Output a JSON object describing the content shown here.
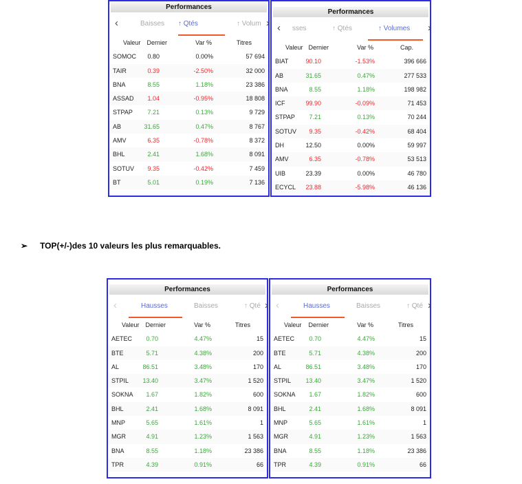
{
  "colors": {
    "border": "#2b2be8",
    "up": "#3aa83a",
    "down": "#f0282d",
    "active_tab": "#5b6ad2",
    "underline": "#ef5a2a"
  },
  "bullet": {
    "icon": "arrowhead-bullet-icon",
    "glyph": "➢",
    "text": "TOP(+/-)des 10 valeurs les plus remarquables."
  },
  "panels": [
    {
      "title": "Performances",
      "tabs": [
        {
          "label": "Baisses",
          "active": false
        },
        {
          "label": "↑ Qtés",
          "active": true
        },
        {
          "label": "↑ Volum",
          "active": false
        }
      ],
      "columns": [
        "Valeur",
        "Dernier",
        "Var %",
        "Titres"
      ],
      "rows": [
        [
          "SOMOC",
          "0.80",
          "0.00%",
          "57 694",
          "flat"
        ],
        [
          "TAIR",
          "0.39",
          "-2.50%",
          "32 000",
          "down"
        ],
        [
          "BNA",
          "8.55",
          "1.18%",
          "23 386",
          "up"
        ],
        [
          "ASSAD",
          "1.04",
          "-0.95%",
          "18 808",
          "down"
        ],
        [
          "STPAP",
          "7.21",
          "0.13%",
          "9 729",
          "up"
        ],
        [
          "AB",
          "31.65",
          "0.47%",
          "8 767",
          "up"
        ],
        [
          "AMV",
          "6.35",
          "-0.78%",
          "8 372",
          "down"
        ],
        [
          "BHL",
          "2.41",
          "1.68%",
          "8 091",
          "up"
        ],
        [
          "SOTUV",
          "9.35",
          "-0.42%",
          "7 459",
          "down"
        ],
        [
          "BT",
          "5.01",
          "0.19%",
          "7 136",
          "up"
        ]
      ]
    },
    {
      "title": "Performances",
      "tabs": [
        {
          "label": "sses",
          "active": false
        },
        {
          "label": "↑ Qtés",
          "active": false
        },
        {
          "label": "↑ Volumes",
          "active": true
        }
      ],
      "columns": [
        "Valeur",
        "Dernier",
        "Var %",
        "Cap."
      ],
      "rows": [
        [
          "BIAT",
          "90.10",
          "-1.53%",
          "396 666",
          "down"
        ],
        [
          "AB",
          "31.65",
          "0.47%",
          "277 533",
          "up"
        ],
        [
          "BNA",
          "8.55",
          "1.18%",
          "198 982",
          "up"
        ],
        [
          "ICF",
          "99.90",
          "-0.09%",
          "71 453",
          "down"
        ],
        [
          "STPAP",
          "7.21",
          "0.13%",
          "70 244",
          "up"
        ],
        [
          "SOTUV",
          "9.35",
          "-0.42%",
          "68 404",
          "down"
        ],
        [
          "DH",
          "12.50",
          "0.00%",
          "59 997",
          "flat"
        ],
        [
          "AMV",
          "6.35",
          "-0.78%",
          "53 513",
          "down"
        ],
        [
          "UIB",
          "23.39",
          "0.00%",
          "46 780",
          "flat"
        ],
        [
          "ECYCL",
          "23.88",
          "-5.98%",
          "46 136",
          "down"
        ]
      ]
    },
    {
      "title": "Performances",
      "tabs": [
        {
          "label": "Hausses",
          "active": true
        },
        {
          "label": "Baisses",
          "active": false
        },
        {
          "label": "↑ Qté",
          "active": false
        }
      ],
      "columns": [
        "Valeur",
        "Dernier",
        "Var %",
        "Titres"
      ],
      "rows": [
        [
          "AETEC",
          "0.70",
          "4.47%",
          "15",
          "up"
        ],
        [
          "BTE",
          "5.71",
          "4.38%",
          "200",
          "up"
        ],
        [
          "AL",
          "86.51",
          "3.48%",
          "170",
          "up"
        ],
        [
          "STPIL",
          "13.40",
          "3.47%",
          "1 520",
          "up"
        ],
        [
          "SOKNA",
          "1.67",
          "1.82%",
          "600",
          "up"
        ],
        [
          "BHL",
          "2.41",
          "1.68%",
          "8 091",
          "up"
        ],
        [
          "MNP",
          "5.65",
          "1.61%",
          "1",
          "up"
        ],
        [
          "MGR",
          "4.91",
          "1.23%",
          "1 563",
          "up"
        ],
        [
          "BNA",
          "8.55",
          "1.18%",
          "23 386",
          "up"
        ],
        [
          "TPR",
          "4.39",
          "0.91%",
          "66",
          "up"
        ]
      ]
    },
    {
      "title": "Performances",
      "tabs": [
        {
          "label": "Hausses",
          "active": true
        },
        {
          "label": "Baisses",
          "active": false
        },
        {
          "label": "↑ Qté",
          "active": false
        }
      ],
      "columns": [
        "Valeur",
        "Dernier",
        "Var %",
        "Titres"
      ],
      "rows": [
        [
          "AETEC",
          "0.70",
          "4.47%",
          "15",
          "up"
        ],
        [
          "BTE",
          "5.71",
          "4.38%",
          "200",
          "up"
        ],
        [
          "AL",
          "86.51",
          "3.48%",
          "170",
          "up"
        ],
        [
          "STPIL",
          "13.40",
          "3.47%",
          "1 520",
          "up"
        ],
        [
          "SOKNA",
          "1.67",
          "1.82%",
          "600",
          "up"
        ],
        [
          "BHL",
          "2.41",
          "1.68%",
          "8 091",
          "up"
        ],
        [
          "MNP",
          "5.65",
          "1.61%",
          "1",
          "up"
        ],
        [
          "MGR",
          "4.91",
          "1.23%",
          "1 563",
          "up"
        ],
        [
          "BNA",
          "8.55",
          "1.18%",
          "23 386",
          "up"
        ],
        [
          "TPR",
          "4.39",
          "0.91%",
          "66",
          "up"
        ]
      ]
    }
  ]
}
